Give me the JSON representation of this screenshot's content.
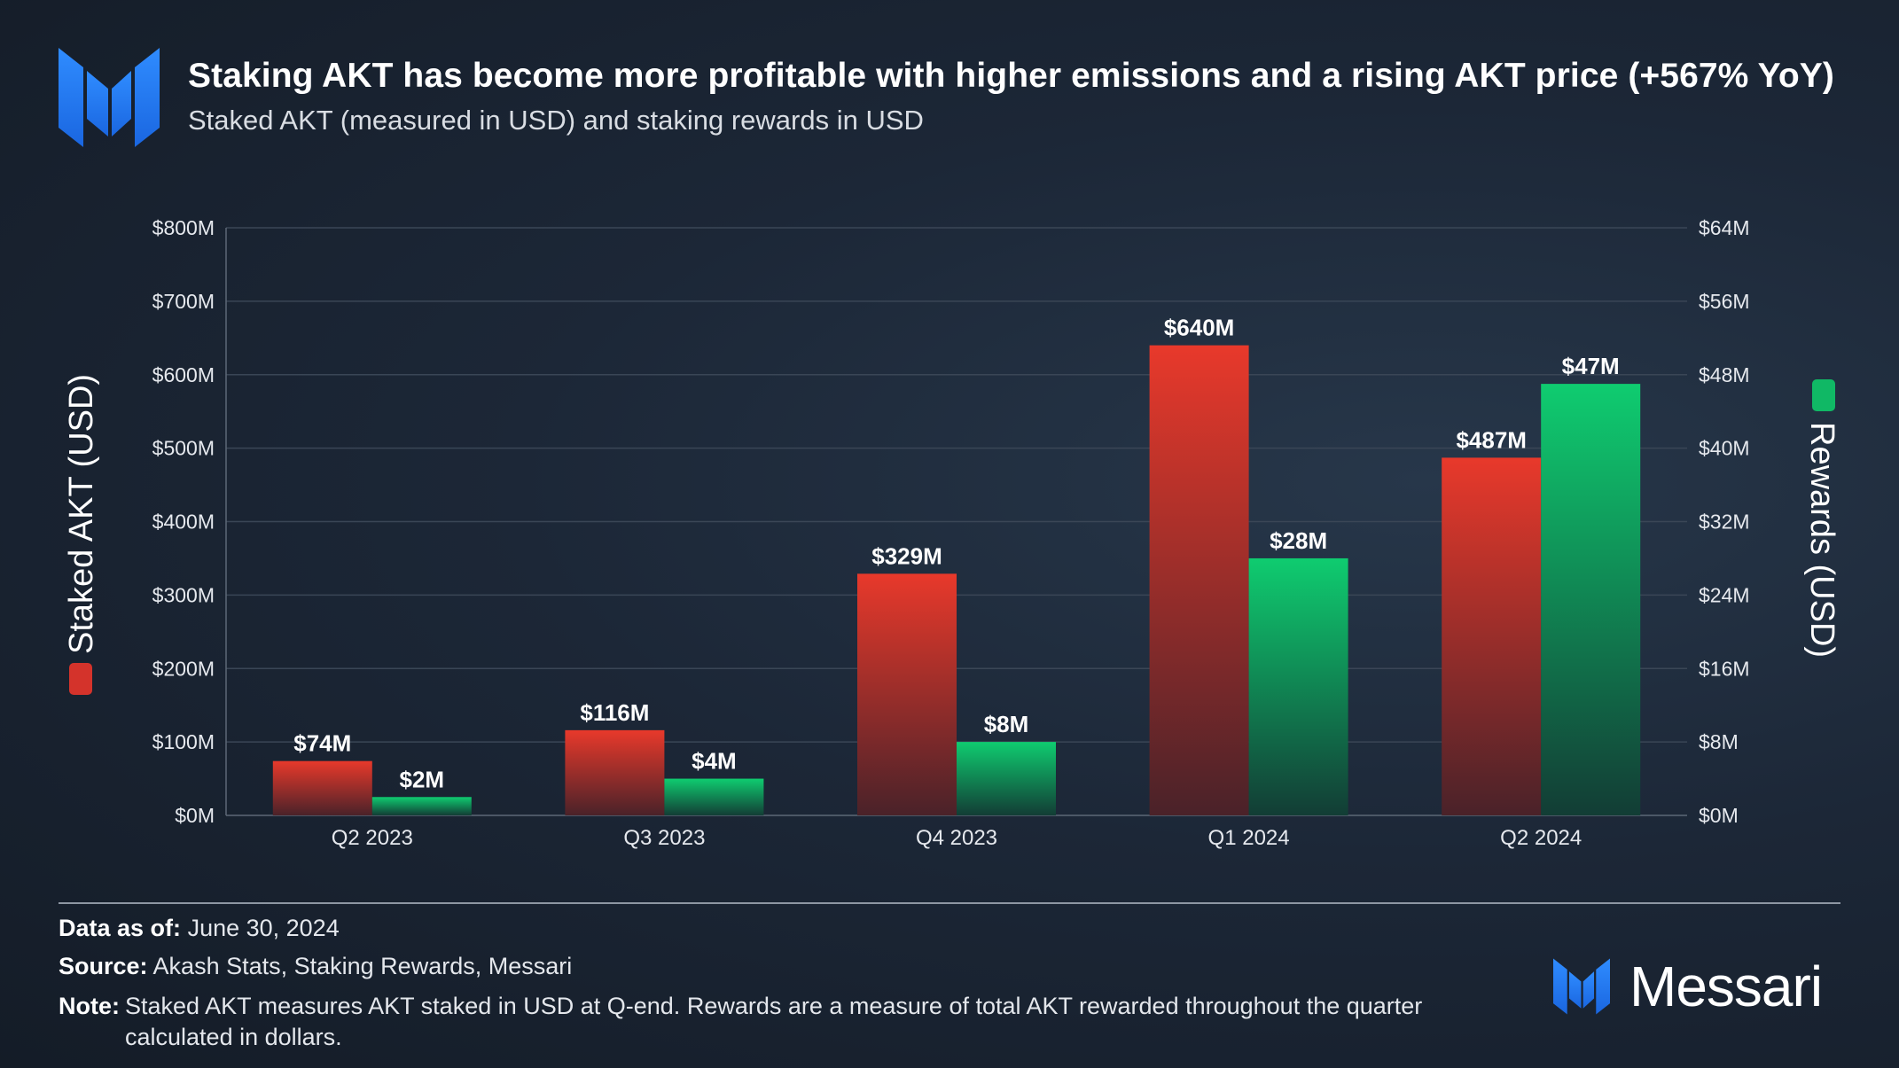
{
  "header": {
    "title": "Staking AKT has become more profitable with higher emissions and a rising AKT price (+567% YoY)",
    "subtitle": "Staked AKT (measured in USD) and staking rewards in USD"
  },
  "colors": {
    "staked": "#e0392c",
    "rewards": "#0fc46d",
    "grid": "#3a4656"
  },
  "chart_data": {
    "type": "bar",
    "categories": [
      "Q2 2023",
      "Q3 2023",
      "Q4 2023",
      "Q1 2024",
      "Q2 2024"
    ],
    "series": [
      {
        "name": "Staked AKT (USD)",
        "axis": "left",
        "values": [
          74,
          116,
          329,
          640,
          487
        ],
        "labels": [
          "$74M",
          "$116M",
          "$329M",
          "$640M",
          "$487M"
        ]
      },
      {
        "name": "Rewards (USD)",
        "axis": "right",
        "values": [
          2,
          4,
          8,
          28,
          47
        ],
        "labels": [
          "$2M",
          "$4M",
          "$8M",
          "$28M",
          "$47M"
        ]
      }
    ],
    "y_left": {
      "label": "Staked AKT (USD)",
      "range": [
        0,
        800
      ],
      "ticks": [
        "$0M",
        "$100M",
        "$200M",
        "$300M",
        "$400M",
        "$500M",
        "$600M",
        "$700M",
        "$800M"
      ]
    },
    "y_right": {
      "label": "Rewards (USD)",
      "range": [
        0,
        64
      ],
      "ticks": [
        "$0M",
        "$8M",
        "$16M",
        "$24M",
        "$32M",
        "$40M",
        "$48M",
        "$56M",
        "$64M"
      ]
    },
    "grid": true
  },
  "footer": {
    "data_as_of_label": "Data as of:",
    "data_as_of_value": "June 30, 2024",
    "source_label": "Source:",
    "source_value": "Akash Stats, Staking Rewards, Messari",
    "note_label": "Note:",
    "note_value": "Staked AKT measures AKT staked in USD at Q-end. Rewards are a measure of total AKT rewarded throughout the quarter calculated in dollars.",
    "brand": "Messari"
  },
  "icons": {
    "logo": "messari-logo-icon"
  }
}
